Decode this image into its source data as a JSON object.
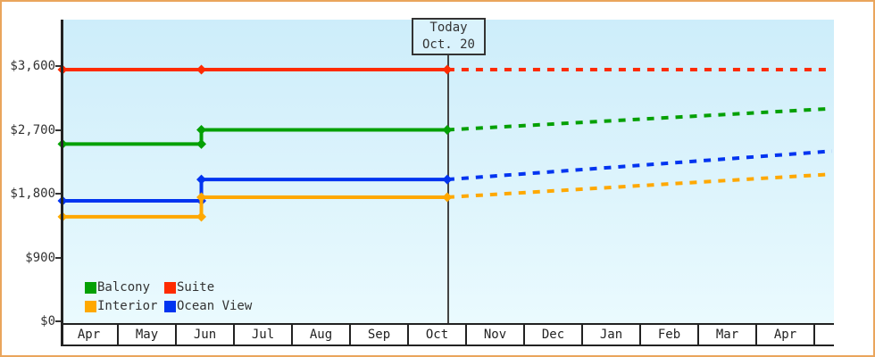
{
  "frame": {
    "border_color": "#eaa55c",
    "background": "#ffffff"
  },
  "today_box": {
    "line1": "Today",
    "line2": "Oct. 20"
  },
  "chart_data": {
    "type": "line",
    "description": "Stepped price history (solid) and forecast (dashed) by cabin type",
    "x_axis": {
      "labels": [
        "Apr",
        "May",
        "Jun",
        "Jul",
        "Aug",
        "Sep",
        "Oct",
        "Nov",
        "Dec",
        "Jan",
        "Feb",
        "Mar",
        "Apr"
      ],
      "trailing_blank_cell": true,
      "months_shown": 13.3
    },
    "y_axis": {
      "tick_labels": [
        "$0",
        "$900",
        "$1,800",
        "$2,700",
        "$3,600"
      ],
      "tick_values": [
        0,
        900,
        1800,
        2700,
        3600
      ],
      "range": [
        0,
        3600
      ],
      "grid": false
    },
    "today": {
      "t": 6.65,
      "label": "Today Oct. 20"
    },
    "series": [
      {
        "name": "Suite",
        "color": "#fe2b00",
        "history": [
          {
            "t": 0,
            "value": 3550
          },
          {
            "t": 2.4,
            "value": 3550
          },
          {
            "t": 6.65,
            "value": 3550
          }
        ],
        "forecast_end": {
          "t": 13.3,
          "value": 3550
        }
      },
      {
        "name": "Balcony",
        "color": "#04a004",
        "history": [
          {
            "t": 0,
            "value": 2500
          },
          {
            "t": 2.4,
            "value": 2500
          },
          {
            "t": 2.4,
            "value": 2700
          },
          {
            "t": 6.65,
            "value": 2700
          }
        ],
        "forecast_end": {
          "t": 13.3,
          "value": 3000
        }
      },
      {
        "name": "Ocean View",
        "color": "#0134f0",
        "history": [
          {
            "t": 0,
            "value": 1700
          },
          {
            "t": 2.4,
            "value": 1700
          },
          {
            "t": 2.4,
            "value": 2000
          },
          {
            "t": 6.65,
            "value": 2000
          }
        ],
        "forecast_end": {
          "t": 13.3,
          "value": 2400
        }
      },
      {
        "name": "Interior",
        "color": "#ffa800",
        "history": [
          {
            "t": 0,
            "value": 1475
          },
          {
            "t": 2.4,
            "value": 1475
          },
          {
            "t": 2.4,
            "value": 1750
          },
          {
            "t": 6.65,
            "value": 1750
          }
        ],
        "forecast_end": {
          "t": 13.3,
          "value": 2075
        }
      }
    ],
    "legend": {
      "position": "bottom-left",
      "items": [
        {
          "label": "Balcony",
          "color": "#04a004"
        },
        {
          "label": "Suite",
          "color": "#fe2b00"
        },
        {
          "label": "Interior",
          "color": "#ffa800"
        },
        {
          "label": "Ocean View",
          "color": "#0134f0"
        }
      ]
    }
  }
}
